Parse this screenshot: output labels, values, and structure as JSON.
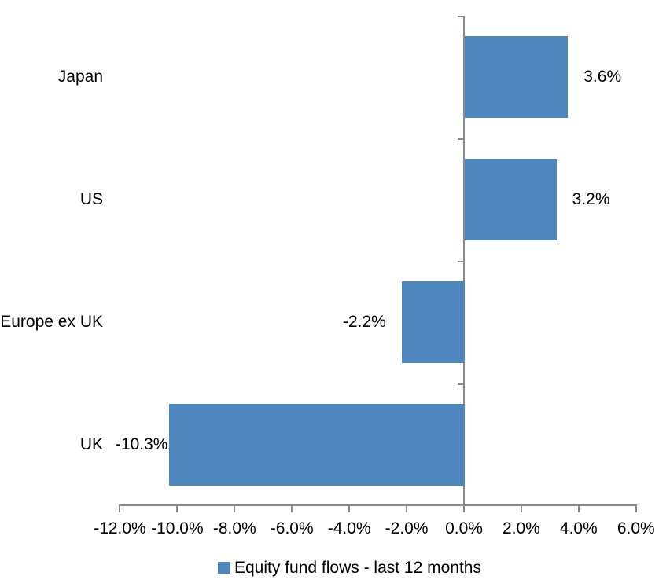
{
  "chart_data": {
    "type": "bar",
    "orientation": "horizontal",
    "title": "",
    "categories": [
      "Japan",
      "US",
      "Europe ex UK",
      "UK"
    ],
    "values": [
      3.6,
      3.2,
      -2.2,
      -10.3
    ],
    "data_labels": [
      "3.6%",
      "3.2%",
      "-2.2%",
      "-10.3%"
    ],
    "series_name": "Equity fund flows - last 12 months",
    "x_tick_labels": [
      "-12.0%",
      "-10.0%",
      "-8.0%",
      "-6.0%",
      "-4.0%",
      "-2.0%",
      "0.0%",
      "2.0%",
      "4.0%",
      "6.0%"
    ],
    "x_tick_values": [
      -12,
      -10,
      -8,
      -6,
      -4,
      -2,
      0,
      2,
      4,
      6
    ],
    "xlim": [
      -12,
      6
    ],
    "grid": false,
    "legend_position": "bottom",
    "bar_color": "#4E86BE",
    "axis_color": "#8A8A8A",
    "text_color": "#000000"
  },
  "legend": {
    "label": "Equity fund flows - last 12 months"
  }
}
